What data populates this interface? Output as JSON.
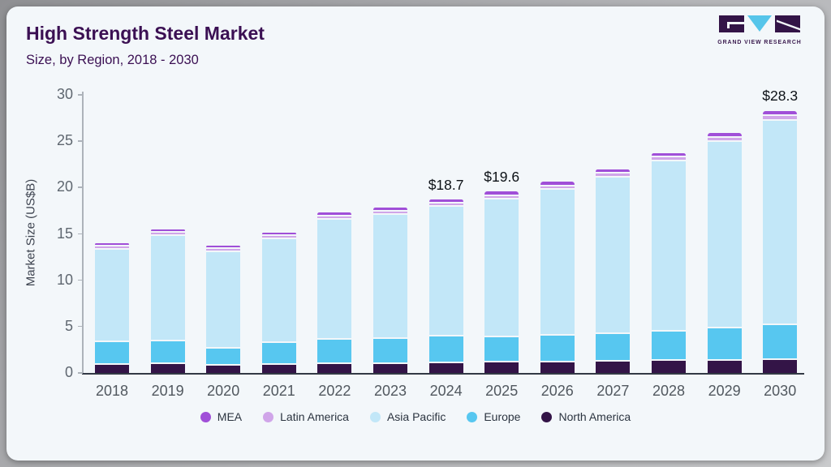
{
  "header": {
    "title": "High Strength Steel Market",
    "subtitle": "Size, by Region, 2018 - 2030",
    "logo_text": "GRAND VIEW RESEARCH"
  },
  "colors": {
    "title_text": "#3b1053",
    "card_background": "#f3f7fa",
    "logo_purple": "#331447",
    "logo_cyan": "#56c5ea"
  },
  "chart_data": {
    "type": "bar",
    "stacked": true,
    "title": "High Strength Steel Market",
    "subtitle": "Size, by Region, 2018 - 2030",
    "ylabel": "Market Size (US$B)",
    "ylim": [
      0,
      30
    ],
    "yticks": [
      0,
      5,
      10,
      15,
      20,
      25,
      30
    ],
    "grid": false,
    "legend_position": "bottom",
    "categories": [
      "2018",
      "2019",
      "2020",
      "2021",
      "2022",
      "2023",
      "2024",
      "2025",
      "2026",
      "2027",
      "2028",
      "2029",
      "2030"
    ],
    "series": [
      {
        "name": "North America",
        "color": "#331447",
        "values": [
          0.85,
          0.95,
          0.75,
          0.85,
          0.95,
          1.0,
          1.05,
          1.1,
          1.15,
          1.2,
          1.3,
          1.35,
          1.4
        ]
      },
      {
        "name": "Europe",
        "color": "#57c7f0",
        "values": [
          2.5,
          2.5,
          1.85,
          2.35,
          2.6,
          2.7,
          2.9,
          2.75,
          2.9,
          3.0,
          3.15,
          3.45,
          3.8
        ]
      },
      {
        "name": "Asia Pacific",
        "color": "#c2e7f8",
        "values": [
          9.95,
          11.35,
          10.45,
          11.2,
          13.0,
          13.4,
          14.0,
          14.85,
          15.75,
          16.9,
          18.4,
          20.1,
          22.0
        ]
      },
      {
        "name": "Latin America",
        "color": "#d0a5e9",
        "values": [
          0.2,
          0.25,
          0.2,
          0.2,
          0.3,
          0.3,
          0.3,
          0.35,
          0.35,
          0.4,
          0.4,
          0.45,
          0.5
        ]
      },
      {
        "name": "MEA",
        "color": "#a04fd8",
        "values": [
          0.25,
          0.25,
          0.25,
          0.3,
          0.45,
          0.4,
          0.45,
          0.55,
          0.5,
          0.45,
          0.45,
          0.55,
          0.6
        ]
      }
    ],
    "totals": [
      13.75,
      15.3,
      13.5,
      14.9,
      17.3,
      17.8,
      18.7,
      19.6,
      20.65,
      21.95,
      23.7,
      25.9,
      28.3
    ],
    "value_labels": {
      "2024": "$18.7",
      "2025": "$19.6",
      "2030": "$28.3"
    },
    "legend_order": [
      "MEA",
      "Latin America",
      "Asia Pacific",
      "Europe",
      "North America"
    ]
  }
}
